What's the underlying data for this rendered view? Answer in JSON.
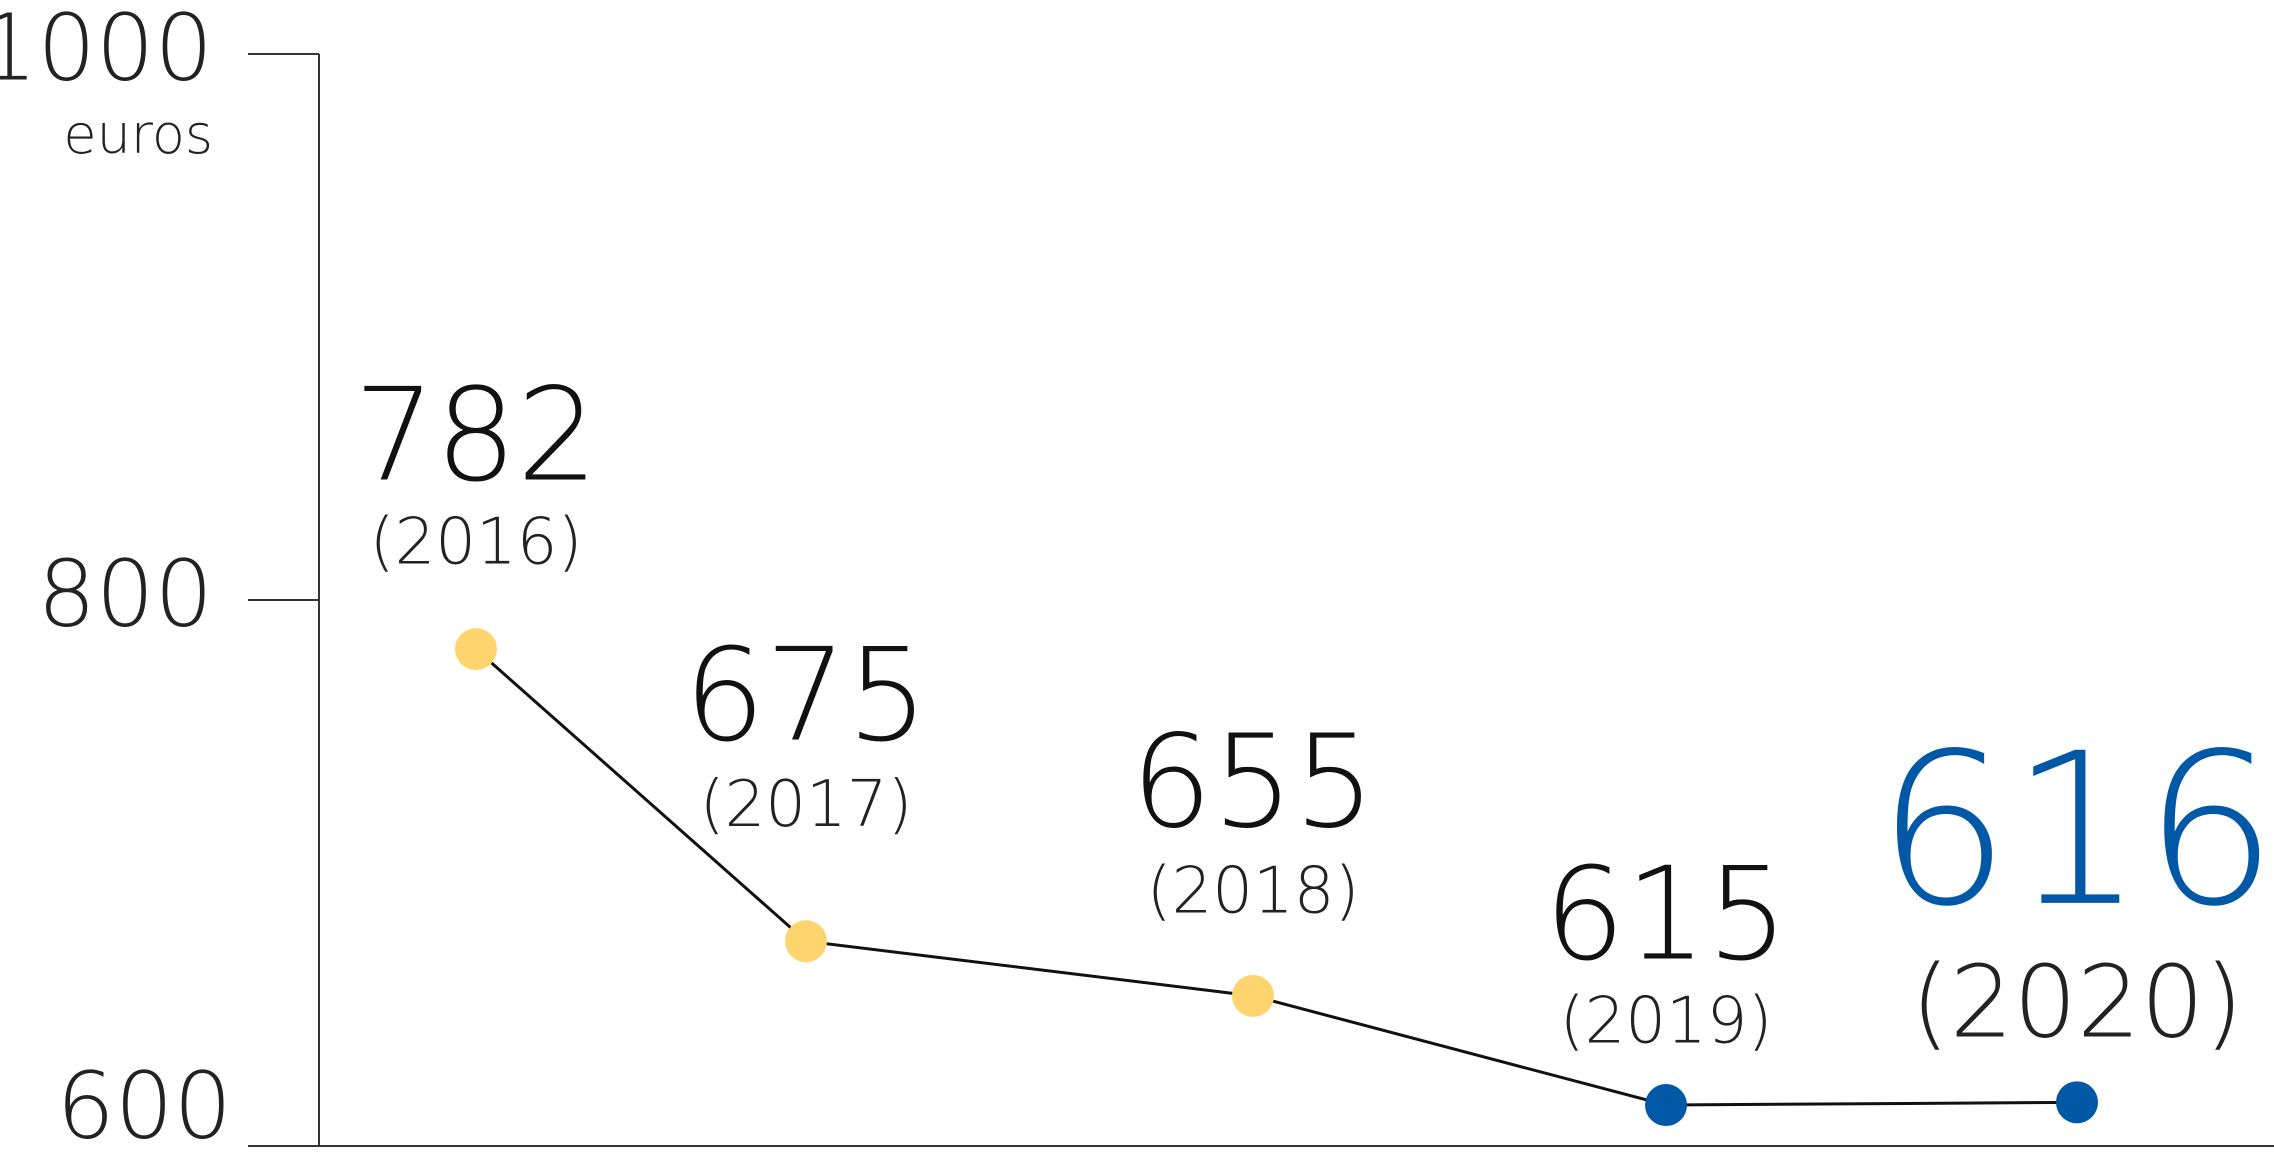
{
  "chart_data": {
    "type": "line",
    "y_unit_label": "euros",
    "categories": [
      "(2016)",
      "(2017)",
      "(2018)",
      "(2019)",
      "(2020)"
    ],
    "values": [
      782,
      675,
      655,
      615,
      616
    ],
    "line_color": "#111111",
    "point_colors": [
      "#fed46f",
      "#fed46f",
      "#fed46f",
      "#0058a6",
      "#0058a6"
    ],
    "value_label_colors": [
      "#111111",
      "#111111",
      "#111111",
      "#111111",
      "#0058a6"
    ],
    "ylim": [
      600,
      1000
    ],
    "yticks": [
      600,
      800,
      1000
    ]
  }
}
